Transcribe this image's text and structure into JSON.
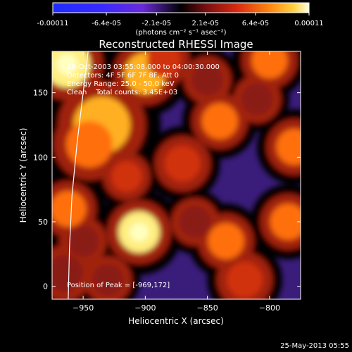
{
  "chart_data": {
    "type": "heatmap",
    "title": "Reconstructed RHESSI Image",
    "xlabel": "Heliocentric X (arcsec)",
    "ylabel": "Heliocentric Y (arcsec)",
    "xlim": [
      -975,
      -775
    ],
    "ylim": [
      -10,
      182
    ],
    "x_ticks": [
      -950,
      -900,
      -850,
      -800
    ],
    "y_ticks": [
      0,
      50,
      100,
      150
    ],
    "colorbar": {
      "min": -0.00011,
      "max": 0.00011,
      "tick_values": [
        -0.00011,
        -6.4e-05,
        -2.1e-05,
        2.1e-05,
        6.4e-05,
        0.00011
      ],
      "tick_labels": [
        "-0.00011",
        "-6.4e-05",
        "-2.1e-05",
        "2.1e-05",
        "6.4e-05",
        "0.00011"
      ],
      "unit_label": "(photons cm⁻² s⁻¹ asec⁻²)"
    },
    "annotations": [
      "19-Oct-2003 03:55:08.000 to 04:00:30.000",
      "Detectors: 4F 5F 6F 7F 8F, Att 0",
      "Energy Range: 25.0 - 50.0 keV",
      "Clean    Total counts: 3.45E+03"
    ],
    "peak_label": "Position of Peak = [-969,172]",
    "peak_position": [
      -969,
      172
    ],
    "limb_curve": [
      [
        -962,
        -10
      ],
      [
        -961,
        30
      ],
      [
        -959,
        70
      ],
      [
        -955,
        110
      ],
      [
        -950,
        150
      ],
      [
        -946,
        182
      ]
    ],
    "bright_blobs": [
      {
        "x": -963,
        "y": 172,
        "level": 0.95,
        "r": 18
      },
      {
        "x": -905,
        "y": 42,
        "level": 0.9,
        "r": 16
      },
      {
        "x": -935,
        "y": 125,
        "level": 0.8,
        "r": 22
      },
      {
        "x": -900,
        "y": 165,
        "level": 0.75,
        "r": 16
      },
      {
        "x": -945,
        "y": 110,
        "level": 0.7,
        "r": 18
      },
      {
        "x": -840,
        "y": 128,
        "level": 0.65,
        "r": 14
      },
      {
        "x": -780,
        "y": 108,
        "level": 0.7,
        "r": 14
      },
      {
        "x": -800,
        "y": 175,
        "level": 0.6,
        "r": 14
      },
      {
        "x": -785,
        "y": 50,
        "level": 0.6,
        "r": 14
      },
      {
        "x": -835,
        "y": 35,
        "level": 0.65,
        "r": 14
      },
      {
        "x": -962,
        "y": 60,
        "level": 0.6,
        "r": 14
      },
      {
        "x": -965,
        "y": 10,
        "level": 0.4,
        "r": 14
      },
      {
        "x": -870,
        "y": 95,
        "level": 0.55,
        "r": 14
      },
      {
        "x": -885,
        "y": 175,
        "level": 0.55,
        "r": 13
      },
      {
        "x": -860,
        "y": 50,
        "level": 0.35,
        "r": 12
      },
      {
        "x": -820,
        "y": 5,
        "level": 0.45,
        "r": 14
      },
      {
        "x": -930,
        "y": 5,
        "level": 0.35,
        "r": 12
      },
      {
        "x": -915,
        "y": 85,
        "level": 0.45,
        "r": 12
      },
      {
        "x": -810,
        "y": 145,
        "level": 0.3,
        "r": 12
      },
      {
        "x": -850,
        "y": 160,
        "level": 0.3,
        "r": 12
      },
      {
        "x": -950,
        "y": 35,
        "level": 0.3,
        "r": 12
      }
    ]
  },
  "footer": {
    "date": "25-May-2013 05:55"
  },
  "colors": {
    "background": "#000000",
    "low": "#5a2ea6",
    "high": "#fff7a0"
  }
}
